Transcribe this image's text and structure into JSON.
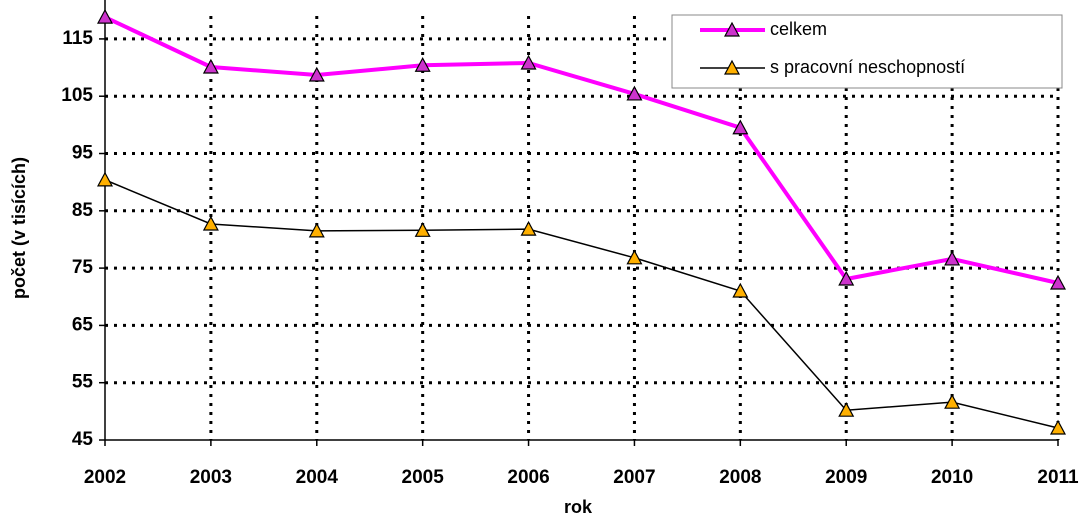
{
  "chart_data": {
    "type": "line",
    "categories": [
      "2002",
      "2003",
      "2004",
      "2005",
      "2006",
      "2007",
      "2008",
      "2009",
      "2010",
      "2011"
    ],
    "series": [
      {
        "name": "celkem",
        "color": "#ff00ff",
        "marker_color": "#cc33cc",
        "values": [
          118.8,
          110.1,
          108.7,
          110.4,
          110.8,
          105.4,
          99.5,
          73.1,
          76.6,
          72.4
        ]
      },
      {
        "name": "s pracovní neschopností",
        "color": "#000000",
        "marker_color": "#ffb000",
        "values": [
          90.4,
          82.7,
          81.5,
          81.6,
          81.8,
          76.8,
          71.0,
          50.2,
          51.6,
          47.1
        ]
      }
    ],
    "ylim": [
      45,
      119
    ],
    "yticks": [
      45,
      55,
      65,
      75,
      85,
      95,
      105,
      115
    ],
    "xlabel": "rok",
    "ylabel": "počet (v tisících)",
    "grid": true,
    "legend": "upper right"
  }
}
